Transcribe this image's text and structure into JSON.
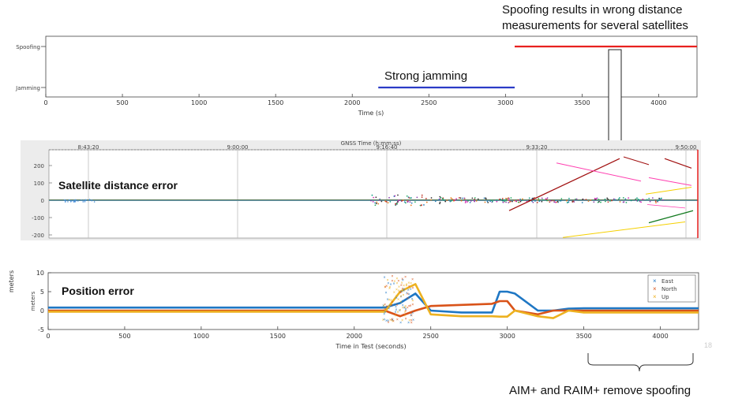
{
  "annotations": {
    "spoofing_line1": "Spoofing results in wrong distance",
    "spoofing_line2": "measurements for several satellites",
    "strong_jamming": "Strong jamming",
    "remove_spoofing": "AIM+ and RAIM+ remove spoofing",
    "side_ylabel": "meters",
    "slide_number": "18"
  },
  "colors": {
    "spoofing": "#e8211f",
    "jamming": "#2b3bc7",
    "east": "#1f77c4",
    "north": "#d95319",
    "up": "#edb120",
    "grid": "#bbbbbb"
  },
  "chart_data": [
    {
      "type": "line",
      "title": "",
      "xlabel": "Time (s)",
      "ylabel": "",
      "xlim": [
        0,
        4250
      ],
      "x_ticks": [
        "0",
        "500",
        "1000",
        "1500",
        "2000",
        "2500",
        "3000",
        "3500",
        "4000"
      ],
      "y_categories": [
        "Spoofing",
        "Jamming"
      ],
      "series": [
        {
          "category": "Spoofing",
          "x": [
            3060,
            4250
          ]
        },
        {
          "category": "Jamming",
          "x": [
            2170,
            3060
          ]
        }
      ]
    },
    {
      "type": "scatter",
      "title": "GNSS Time (h:mm:ss)",
      "label": "Satellite distance error",
      "xlabel": "",
      "ylabel": "",
      "ylim": [
        -220,
        250
      ],
      "y_ticks": [
        "200",
        "100",
        "0",
        "-100",
        "-200"
      ],
      "x_ticks": [
        "8:43:20",
        "9:00:00",
        "9:16:40",
        "9:33:20",
        "9:50:00"
      ],
      "grid": true
    },
    {
      "type": "line",
      "title": "",
      "label": "Position error",
      "xlabel": "Time in Test (seconds)",
      "ylabel": "meters",
      "xlim": [
        0,
        4250
      ],
      "ylim": [
        -5,
        10
      ],
      "x_ticks": [
        "0",
        "500",
        "1000",
        "1500",
        "2000",
        "2500",
        "3000",
        "3500",
        "4000"
      ],
      "y_ticks": [
        "10",
        "5",
        "0",
        "-5"
      ],
      "legend": "top-right",
      "series": [
        {
          "name": "East",
          "x": [
            0,
            500,
            1000,
            1500,
            2000,
            2200,
            2300,
            2400,
            2500,
            2700,
            2900,
            2950,
            3000,
            3050,
            3200,
            3300,
            3400,
            3500,
            4000,
            4250
          ],
          "values": [
            0.8,
            0.8,
            0.8,
            0.8,
            0.8,
            0.8,
            2,
            4.5,
            0,
            -0.5,
            -0.5,
            5,
            5,
            4.5,
            0,
            0,
            0.5,
            0.6,
            0.6,
            0.6
          ]
        },
        {
          "name": "North",
          "x": [
            0,
            500,
            1000,
            1500,
            2000,
            2200,
            2300,
            2400,
            2500,
            2700,
            2900,
            2950,
            3000,
            3050,
            3200,
            3300,
            3400,
            3500,
            4000,
            4250
          ],
          "values": [
            0,
            0,
            0,
            0,
            0,
            0,
            -1.5,
            0,
            1.2,
            1.5,
            1.8,
            2.5,
            2.5,
            0,
            -1,
            0,
            0,
            0,
            0,
            0
          ]
        },
        {
          "name": "Up",
          "x": [
            0,
            500,
            1000,
            1500,
            2000,
            2200,
            2300,
            2400,
            2500,
            2700,
            2900,
            2950,
            3000,
            3050,
            3200,
            3300,
            3400,
            3500,
            4000,
            4250
          ],
          "values": [
            -0.3,
            -0.3,
            -0.3,
            -0.3,
            -0.3,
            -0.3,
            5,
            7,
            -1,
            -1.5,
            -1.5,
            -1.6,
            -1.6,
            0,
            -1.5,
            -2,
            0,
            -0.5,
            -0.5,
            -0.5
          ]
        }
      ]
    }
  ]
}
